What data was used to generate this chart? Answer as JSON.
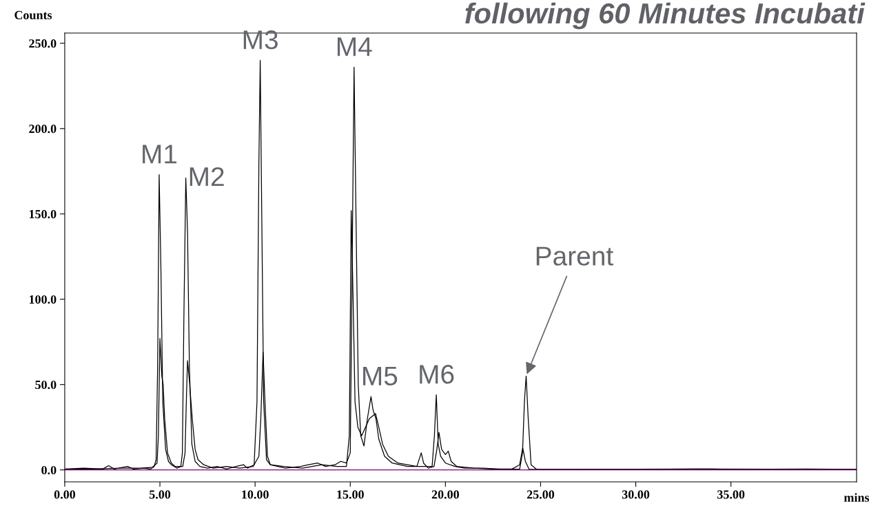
{
  "chart_data": {
    "type": "line",
    "title": "following 60 Minutes Incubati",
    "xlabel": "mins",
    "ylabel": "Counts",
    "xlim": [
      0,
      41.6
    ],
    "ylim": [
      -7,
      256
    ],
    "xticks": [
      {
        "value": 0,
        "label": "0.00"
      },
      {
        "value": 5,
        "label": "5.00"
      },
      {
        "value": 10,
        "label": "10.00"
      },
      {
        "value": 15,
        "label": "15.00"
      },
      {
        "value": 20,
        "label": "20.00"
      },
      {
        "value": 25,
        "label": "25.00"
      },
      {
        "value": 30,
        "label": "30.00"
      },
      {
        "value": 35,
        "label": "35.00"
      }
    ],
    "yticks": [
      {
        "value": 0,
        "label": "0.0"
      },
      {
        "value": 50,
        "label": "50.0"
      },
      {
        "value": 100,
        "label": "100.0"
      },
      {
        "value": 150,
        "label": "150.0"
      },
      {
        "value": 200,
        "label": "200.0"
      },
      {
        "value": 250,
        "label": "250.0"
      }
    ],
    "grid": false,
    "legend": false,
    "marker": "none",
    "line_style": "solid",
    "series": [
      {
        "color": "#000000",
        "x": [
          0,
          1,
          2,
          2.3,
          2.6,
          3.3,
          3.6,
          4.2,
          4.5,
          4.7,
          4.8,
          4.88,
          4.96,
          5.05,
          5.15,
          5.3,
          5.45,
          5.6,
          5.9,
          6.1,
          6.18,
          6.26,
          6.36,
          6.45,
          6.55,
          6.68,
          6.85,
          7.1,
          7.5,
          8,
          8.5,
          9,
          9.4,
          9.6,
          9.95,
          10.1,
          10.2,
          10.27,
          10.35,
          10.45,
          10.6,
          10.8,
          11.2,
          11.6,
          12.4,
          12.8,
          13.3,
          13.7,
          14.2,
          14.5,
          14.8,
          15.0,
          15.1,
          15.2,
          15.3,
          15.42,
          15.55,
          15.72,
          15.9,
          16.09,
          16.2,
          16.35,
          16.5,
          16.8,
          17.2,
          17.6,
          18,
          18.5,
          19.3,
          19.42,
          19.52,
          19.62,
          19.75,
          20.0,
          20.5,
          21,
          22,
          23,
          23.9,
          24.05,
          24.15,
          24.24,
          24.35,
          24.5,
          24.8,
          26,
          30,
          34,
          35,
          39,
          41.6
        ],
        "values": [
          0.5,
          1,
          0.5,
          2.5,
          0.5,
          2,
          0.5,
          1,
          0.5,
          2,
          6,
          60,
          173,
          120,
          40,
          12,
          5,
          3,
          1,
          2,
          10,
          90,
          171,
          140,
          60,
          15,
          5,
          2,
          1,
          2,
          0.5,
          2,
          3,
          1,
          3,
          40,
          180,
          240,
          150,
          40,
          6,
          3,
          2,
          1,
          2,
          3,
          4,
          2,
          3,
          5,
          4,
          10,
          120,
          236,
          150,
          50,
          20,
          14,
          30,
          43,
          35,
          30,
          18,
          8,
          4,
          3,
          2,
          2,
          2,
          20,
          44,
          15,
          8,
          4,
          2,
          1,
          1,
          0.3,
          0.5,
          10,
          40,
          55,
          30,
          3,
          0.3,
          0.3,
          0.3,
          0.5,
          0.3,
          0.5,
          0.3
        ]
      },
      {
        "color": "#000000",
        "x": [
          0,
          1.5,
          3,
          4,
          4.6,
          4.85,
          4.92,
          5.0,
          5.1,
          5.17,
          5.25,
          5.4,
          5.6,
          5.8,
          6.2,
          6.32,
          6.4,
          6.45,
          6.55,
          6.7,
          6.85,
          7.0,
          7.3,
          7.8,
          8.5,
          9.2,
          9.9,
          10.2,
          10.3,
          10.42,
          10.52,
          10.65,
          10.8,
          11.5,
          12.5,
          13.5,
          14.3,
          14.8,
          14.95,
          15.05,
          15.15,
          15.25,
          15.4,
          15.6,
          15.8,
          16.0,
          16.33,
          16.5,
          16.7,
          17,
          17.5,
          18,
          18.5,
          18.73,
          18.85,
          19.1,
          19.4,
          19.55,
          19.66,
          19.8,
          20.0,
          20.15,
          20.3,
          20.6,
          21.5,
          22.5,
          23.5,
          23.9,
          24.06,
          24.2,
          24.4,
          27,
          33,
          41.6
        ],
        "values": [
          0.3,
          0.5,
          1,
          1,
          1.5,
          4,
          20,
          77,
          55,
          50,
          30,
          10,
          4,
          2,
          2,
          10,
          45,
          64,
          52,
          30,
          12,
          6,
          3,
          1,
          2,
          1,
          2,
          8,
          30,
          69,
          40,
          8,
          3,
          2,
          1,
          3,
          2,
          2,
          20,
          152,
          100,
          40,
          25,
          20,
          25,
          30,
          33,
          25,
          15,
          8,
          4,
          3,
          2,
          10,
          4,
          1,
          2,
          12,
          22,
          12,
          9,
          11,
          5,
          2,
          1,
          0.5,
          0.5,
          3,
          13,
          5,
          0.3,
          0.3,
          0.5,
          0.3
        ]
      }
    ],
    "ref_lines": [
      {
        "axis": "y",
        "value": 0,
        "color": "#800080"
      }
    ],
    "annotations": [
      {
        "text": "M1",
        "x": 4.96,
        "y": 173
      },
      {
        "text": "M2",
        "x": 6.36,
        "y": 171
      },
      {
        "text": "M3",
        "x": 10.27,
        "y": 240
      },
      {
        "text": "M4",
        "x": 15.2,
        "y": 236
      },
      {
        "text": "M5",
        "x": 16.09,
        "y": 43
      },
      {
        "text": "M6",
        "x": 19.52,
        "y": 44
      },
      {
        "text": "Parent",
        "x": 24.24,
        "y": 55
      }
    ]
  }
}
